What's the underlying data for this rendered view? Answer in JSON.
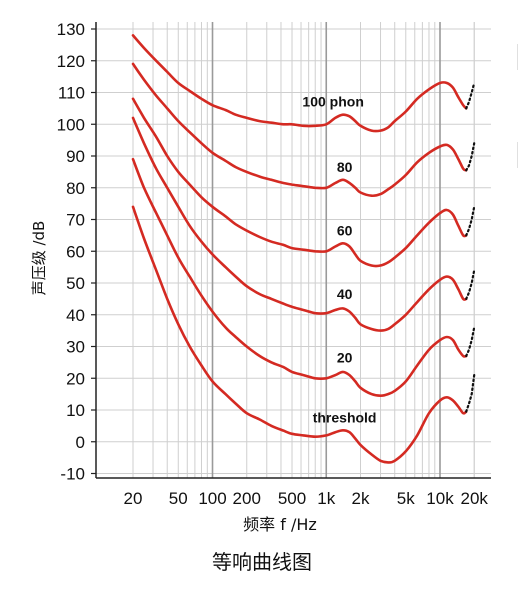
{
  "caption": "等响曲线图",
  "chart_data": {
    "type": "line",
    "title": "等响曲线图",
    "xlabel": "频率 f /Hz",
    "ylabel": "声压级 /dB",
    "xscale": "log",
    "xlim": [
      15,
      20000
    ],
    "ylim": [
      -10,
      130
    ],
    "xticks": [
      {
        "value": 20,
        "label": "20"
      },
      {
        "value": 50,
        "label": "50"
      },
      {
        "value": 100,
        "label": "100"
      },
      {
        "value": 200,
        "label": "200"
      },
      {
        "value": 500,
        "label": "500"
      },
      {
        "value": 1000,
        "label": "1k"
      },
      {
        "value": 2000,
        "label": "2k"
      },
      {
        "value": 5000,
        "label": "5k"
      },
      {
        "value": 10000,
        "label": "10k"
      },
      {
        "value": 20000,
        "label": "20k"
      }
    ],
    "yticks": [
      -10,
      0,
      10,
      20,
      30,
      40,
      50,
      60,
      70,
      80,
      90,
      100,
      110,
      120,
      130
    ],
    "grid": true,
    "line_color": "#d42a22",
    "dotted_color": "#111111",
    "series": [
      {
        "name": "threshold",
        "points": [
          [
            20,
            74
          ],
          [
            25,
            64
          ],
          [
            32,
            54
          ],
          [
            40,
            45
          ],
          [
            50,
            37
          ],
          [
            63,
            30
          ],
          [
            80,
            24
          ],
          [
            100,
            19
          ],
          [
            130,
            15
          ],
          [
            160,
            12
          ],
          [
            200,
            9
          ],
          [
            260,
            7
          ],
          [
            330,
            5
          ],
          [
            420,
            3.5
          ],
          [
            500,
            2.5
          ],
          [
            630,
            2
          ],
          [
            800,
            1.6
          ],
          [
            1000,
            2
          ],
          [
            1200,
            3
          ],
          [
            1400,
            3.6
          ],
          [
            1600,
            3
          ],
          [
            1800,
            1
          ],
          [
            2000,
            -1
          ],
          [
            2500,
            -4
          ],
          [
            3000,
            -6
          ],
          [
            3500,
            -6.5
          ],
          [
            4000,
            -6
          ],
          [
            5000,
            -3
          ],
          [
            6300,
            2
          ],
          [
            8000,
            9
          ],
          [
            10000,
            13
          ],
          [
            11500,
            14
          ],
          [
            13000,
            13
          ],
          [
            14500,
            11
          ],
          [
            16000,
            9
          ],
          [
            17000,
            9.5
          ]
        ],
        "dotted": [
          [
            17000,
            9.5
          ],
          [
            18000,
            12
          ],
          [
            19000,
            15
          ],
          [
            20000,
            21
          ]
        ]
      },
      {
        "name": "20",
        "points": [
          [
            20,
            89
          ],
          [
            25,
            80
          ],
          [
            32,
            72
          ],
          [
            40,
            65
          ],
          [
            50,
            58
          ],
          [
            63,
            52
          ],
          [
            80,
            46
          ],
          [
            100,
            41
          ],
          [
            130,
            36
          ],
          [
            160,
            33
          ],
          [
            200,
            30
          ],
          [
            260,
            27
          ],
          [
            330,
            25
          ],
          [
            420,
            23.5
          ],
          [
            500,
            22
          ],
          [
            630,
            21
          ],
          [
            800,
            20
          ],
          [
            1000,
            20
          ],
          [
            1200,
            21
          ],
          [
            1400,
            22
          ],
          [
            1600,
            21
          ],
          [
            1800,
            19
          ],
          [
            2000,
            17
          ],
          [
            2500,
            15
          ],
          [
            3000,
            14.5
          ],
          [
            3500,
            15
          ],
          [
            4000,
            16
          ],
          [
            5000,
            19
          ],
          [
            6300,
            24
          ],
          [
            8000,
            29
          ],
          [
            10000,
            32
          ],
          [
            11500,
            33
          ],
          [
            13000,
            32
          ],
          [
            14500,
            29
          ],
          [
            16000,
            27
          ],
          [
            17000,
            27
          ]
        ],
        "dotted": [
          [
            17000,
            27
          ],
          [
            18000,
            29
          ],
          [
            19000,
            32
          ],
          [
            20000,
            36
          ]
        ]
      },
      {
        "name": "40",
        "points": [
          [
            20,
            102
          ],
          [
            25,
            94
          ],
          [
            32,
            86
          ],
          [
            40,
            80
          ],
          [
            50,
            74
          ],
          [
            63,
            68
          ],
          [
            80,
            63
          ],
          [
            100,
            59
          ],
          [
            130,
            55
          ],
          [
            160,
            52
          ],
          [
            200,
            49
          ],
          [
            260,
            46.5
          ],
          [
            330,
            45
          ],
          [
            420,
            43.5
          ],
          [
            500,
            42.5
          ],
          [
            630,
            41.5
          ],
          [
            800,
            40.5
          ],
          [
            1000,
            40.5
          ],
          [
            1200,
            41.5
          ],
          [
            1400,
            42
          ],
          [
            1600,
            41
          ],
          [
            1800,
            39
          ],
          [
            2000,
            37
          ],
          [
            2500,
            35.5
          ],
          [
            3000,
            35
          ],
          [
            3500,
            35.5
          ],
          [
            4000,
            37
          ],
          [
            5000,
            40
          ],
          [
            6300,
            44
          ],
          [
            8000,
            48
          ],
          [
            10000,
            51
          ],
          [
            11500,
            52
          ],
          [
            13000,
            51
          ],
          [
            14500,
            48
          ],
          [
            16000,
            45
          ],
          [
            17000,
            45
          ]
        ],
        "dotted": [
          [
            17000,
            45
          ],
          [
            18000,
            47
          ],
          [
            19000,
            50
          ],
          [
            20000,
            54
          ]
        ]
      },
      {
        "name": "60",
        "points": [
          [
            20,
            108
          ],
          [
            25,
            102
          ],
          [
            32,
            96
          ],
          [
            40,
            90
          ],
          [
            50,
            85
          ],
          [
            63,
            81
          ],
          [
            80,
            77
          ],
          [
            100,
            74
          ],
          [
            130,
            71
          ],
          [
            160,
            68.5
          ],
          [
            200,
            66.5
          ],
          [
            260,
            64.5
          ],
          [
            330,
            63
          ],
          [
            420,
            62
          ],
          [
            500,
            61
          ],
          [
            630,
            60.5
          ],
          [
            800,
            60
          ],
          [
            1000,
            60
          ],
          [
            1200,
            61.5
          ],
          [
            1400,
            62.5
          ],
          [
            1600,
            61.5
          ],
          [
            1800,
            59
          ],
          [
            2000,
            57
          ],
          [
            2500,
            55.5
          ],
          [
            3000,
            55.5
          ],
          [
            3500,
            56.5
          ],
          [
            4000,
            58
          ],
          [
            5000,
            61
          ],
          [
            6300,
            65
          ],
          [
            8000,
            69
          ],
          [
            10000,
            72
          ],
          [
            11500,
            73
          ],
          [
            13000,
            71.5
          ],
          [
            14500,
            68
          ],
          [
            16000,
            65
          ],
          [
            17000,
            65
          ]
        ],
        "dotted": [
          [
            17000,
            65
          ],
          [
            18000,
            67
          ],
          [
            19000,
            70
          ],
          [
            20000,
            74
          ]
        ]
      },
      {
        "name": "80",
        "points": [
          [
            20,
            119
          ],
          [
            25,
            114
          ],
          [
            32,
            109
          ],
          [
            40,
            105
          ],
          [
            50,
            101
          ],
          [
            63,
            97.5
          ],
          [
            80,
            94
          ],
          [
            100,
            91
          ],
          [
            130,
            88.5
          ],
          [
            160,
            86.5
          ],
          [
            200,
            85
          ],
          [
            260,
            83.5
          ],
          [
            330,
            82.5
          ],
          [
            420,
            81.5
          ],
          [
            500,
            81
          ],
          [
            630,
            80.5
          ],
          [
            800,
            80
          ],
          [
            1000,
            80
          ],
          [
            1200,
            81.5
          ],
          [
            1400,
            82.5
          ],
          [
            1600,
            81.5
          ],
          [
            1800,
            80
          ],
          [
            2000,
            78.5
          ],
          [
            2500,
            77.5
          ],
          [
            3000,
            78
          ],
          [
            3500,
            79.5
          ],
          [
            4000,
            81
          ],
          [
            5000,
            84
          ],
          [
            6300,
            88
          ],
          [
            8000,
            91
          ],
          [
            10000,
            93
          ],
          [
            11500,
            93.5
          ],
          [
            13000,
            92
          ],
          [
            14500,
            89
          ],
          [
            16000,
            86
          ],
          [
            17000,
            85.5
          ]
        ],
        "dotted": [
          [
            17000,
            85.5
          ],
          [
            18000,
            87
          ],
          [
            19000,
            90
          ],
          [
            20000,
            94
          ]
        ]
      },
      {
        "name": "100 phon",
        "points": [
          [
            20,
            128
          ],
          [
            25,
            124
          ],
          [
            32,
            120
          ],
          [
            40,
            116.5
          ],
          [
            50,
            113
          ],
          [
            63,
            110.5
          ],
          [
            80,
            108
          ],
          [
            100,
            106
          ],
          [
            130,
            104.5
          ],
          [
            160,
            103
          ],
          [
            200,
            102
          ],
          [
            260,
            101
          ],
          [
            330,
            100.5
          ],
          [
            420,
            100
          ],
          [
            500,
            100
          ],
          [
            630,
            99.5
          ],
          [
            800,
            99.5
          ],
          [
            1000,
            100
          ],
          [
            1200,
            102
          ],
          [
            1400,
            103
          ],
          [
            1600,
            102.5
          ],
          [
            1800,
            101
          ],
          [
            2000,
            99.5
          ],
          [
            2500,
            98
          ],
          [
            3000,
            98
          ],
          [
            3500,
            99
          ],
          [
            4000,
            101
          ],
          [
            5000,
            104
          ],
          [
            6300,
            108
          ],
          [
            8000,
            111
          ],
          [
            10000,
            113
          ],
          [
            11500,
            113
          ],
          [
            13000,
            111.5
          ],
          [
            14500,
            108.5
          ],
          [
            16000,
            106
          ],
          [
            17000,
            105
          ]
        ],
        "dotted": [
          [
            17000,
            105
          ],
          [
            18000,
            107
          ],
          [
            19000,
            110
          ],
          [
            20000,
            113
          ]
        ]
      }
    ],
    "annotations": [
      {
        "text": "100 phon",
        "x": 1150,
        "y": 103
      },
      {
        "text": "80",
        "x": 1450,
        "y": 82.5
      },
      {
        "text": "60",
        "x": 1450,
        "y": 62.5
      },
      {
        "text": "40",
        "x": 1450,
        "y": 42.5
      },
      {
        "text": "20",
        "x": 1450,
        "y": 22.5
      },
      {
        "text": "threshold",
        "x": 1450,
        "y": 3.5
      }
    ]
  }
}
